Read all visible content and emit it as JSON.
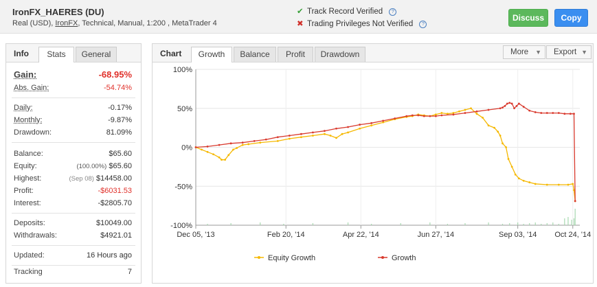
{
  "header": {
    "account_name": "IronFX_HAERES (DU)",
    "sub_prefix": "Real (USD), ",
    "broker": "IronFX",
    "sub_suffix": ", Technical, Manual, 1:200 , MetaTrader 4",
    "track_record": "Track Record Verified",
    "trading_privileges": "Trading Privileges Not Verified",
    "discuss_label": "Discuss",
    "copy_label": "Copy"
  },
  "info_panel": {
    "title": "Info",
    "tabs": [
      "Stats",
      "General"
    ],
    "gain_label": "Gain:",
    "gain_value": "-68.95%",
    "abs_gain_label": "Abs. Gain:",
    "abs_gain_value": "-54.74%",
    "daily_label": "Daily:",
    "daily_value": "-0.17%",
    "monthly_label": "Monthly:",
    "monthly_value": "-9.87%",
    "drawdown_label": "Drawdown:",
    "drawdown_value": "81.09%",
    "balance_label": "Balance:",
    "balance_value": "$65.60",
    "equity_label": "Equity:",
    "equity_pct": "(100.00%)",
    "equity_value": "$65.60",
    "highest_label": "Highest:",
    "highest_date": "(Sep 08)",
    "highest_value": "$14458.00",
    "profit_label": "Profit:",
    "profit_value": "-$6031.53",
    "interest_label": "Interest:",
    "interest_value": "-$2805.70",
    "deposits_label": "Deposits:",
    "deposits_value": "$10049.00",
    "withdrawals_label": "Withdrawals:",
    "withdrawals_value": "$4921.01",
    "updated_label": "Updated:",
    "updated_value": "16 Hours ago",
    "tracking_label": "Tracking",
    "tracking_value": "7"
  },
  "chart_panel": {
    "title": "Chart",
    "tabs": [
      "Growth",
      "Balance",
      "Profit",
      "Drawdown"
    ],
    "more_label": "More",
    "export_label": "Export"
  },
  "colors": {
    "equity": "#f5b800",
    "growth": "#d93a2e",
    "volume": "#a8d8b0"
  },
  "chart_data": {
    "type": "line",
    "title": "",
    "xlabel": "",
    "ylabel": "",
    "ylim": [
      -100,
      100
    ],
    "y_ticks": [
      100,
      50,
      0,
      -50,
      -100
    ],
    "y_tick_labels": [
      "100%",
      "50%",
      "0%",
      "-50%",
      "-100%"
    ],
    "x_range": [
      0,
      328
    ],
    "x_ticks": [
      0,
      77,
      141,
      205,
      275,
      322
    ],
    "x_tick_labels": [
      "Dec 05, '13",
      "Feb 20, '14",
      "Apr 22, '14",
      "Jun 27, '14",
      "Sep 03, '14",
      "Oct 24, '14"
    ],
    "legend_position": "bottom",
    "grid": true,
    "series": [
      {
        "name": "Equity Growth",
        "color": "#f5b800",
        "x": [
          0,
          5,
          10,
          15,
          20,
          22,
          25,
          28,
          32,
          35,
          40,
          45,
          55,
          70,
          80,
          90,
          100,
          110,
          115,
          120,
          125,
          130,
          140,
          150,
          160,
          170,
          180,
          185,
          190,
          195,
          200,
          205,
          210,
          215,
          220,
          225,
          230,
          235,
          240,
          245,
          250,
          255,
          258,
          260,
          262,
          265,
          267,
          270,
          273,
          276,
          280,
          285,
          290,
          300,
          310,
          318,
          322,
          323,
          324
        ],
        "y": [
          0,
          -3,
          -6,
          -9,
          -13,
          -16,
          -16,
          -10,
          -3,
          -1,
          3,
          4,
          6,
          8,
          11,
          13,
          15,
          17,
          15,
          12,
          17,
          19,
          24,
          28,
          32,
          36,
          39,
          40,
          42,
          41,
          40,
          42,
          44,
          43,
          44,
          46,
          48,
          50,
          43,
          38,
          28,
          25,
          20,
          15,
          5,
          0,
          -15,
          -25,
          -35,
          -40,
          -43,
          -45,
          -47,
          -48,
          -48,
          -48,
          -47,
          -55,
          -69
        ]
      },
      {
        "name": "Growth",
        "color": "#d93a2e",
        "x": [
          0,
          10,
          20,
          30,
          40,
          50,
          60,
          70,
          80,
          90,
          100,
          110,
          120,
          130,
          140,
          150,
          160,
          170,
          180,
          185,
          190,
          195,
          200,
          205,
          210,
          220,
          230,
          240,
          250,
          260,
          262,
          264,
          266,
          268,
          270,
          272,
          274,
          276,
          280,
          285,
          290,
          295,
          300,
          305,
          310,
          315,
          320,
          323,
          324
        ],
        "y": [
          0,
          1,
          3,
          5,
          6,
          8,
          10,
          13,
          15,
          17,
          19,
          21,
          24,
          26,
          29,
          31,
          34,
          37,
          40,
          41,
          41,
          40,
          40,
          40,
          41,
          42,
          44,
          46,
          48,
          50,
          51,
          53,
          56,
          57,
          56,
          50,
          53,
          56,
          52,
          47,
          45,
          44,
          44,
          44,
          44,
          43,
          43,
          43,
          -69
        ]
      }
    ]
  }
}
